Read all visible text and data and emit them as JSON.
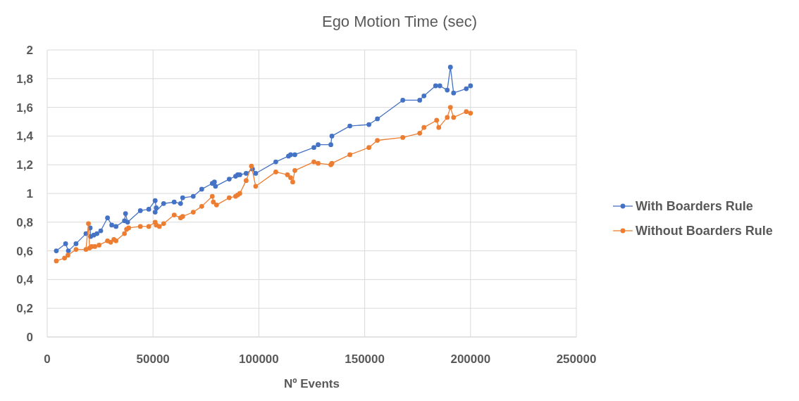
{
  "chart_data": {
    "type": "line",
    "title": "Ego Motion Time (sec)",
    "xlabel": "Nº Events",
    "xlim": [
      0,
      250000
    ],
    "xticks": [
      0,
      50000,
      100000,
      150000,
      200000,
      250000
    ],
    "ylim": [
      0,
      2
    ],
    "yticks": [
      {
        "value": 0,
        "label": "0"
      },
      {
        "value": 0.2,
        "label": "0,2"
      },
      {
        "value": 0.4,
        "label": "0,4"
      },
      {
        "value": 0.6,
        "label": "0,6"
      },
      {
        "value": 0.8,
        "label": "0,8"
      },
      {
        "value": 1,
        "label": "1"
      },
      {
        "value": 1.2,
        "label": "1,2"
      },
      {
        "value": 1.4,
        "label": "1,4"
      },
      {
        "value": 1.6,
        "label": "1,6"
      },
      {
        "value": 1.8,
        "label": "1,8"
      },
      {
        "value": 2,
        "label": "2"
      }
    ],
    "grid": true,
    "legend": "right",
    "marker": "circle",
    "series": [
      {
        "name": "With Boarders Rule",
        "color": "#4472c4",
        "x": [
          4300,
          8700,
          10000,
          13600,
          18300,
          20300,
          20500,
          22000,
          23500,
          25300,
          28500,
          30500,
          32500,
          36500,
          37000,
          38000,
          44000,
          48000,
          51000,
          51500,
          51000,
          55000,
          60000,
          63000,
          64000,
          69000,
          73000,
          78000,
          79000,
          79500,
          86000,
          89000,
          90000,
          91000,
          94000,
          97000,
          98500,
          108000,
          114000,
          115000,
          117000,
          126000,
          128000,
          134000,
          134500,
          143000,
          152000,
          156000,
          168000,
          176000,
          178000,
          183500,
          185500,
          189000,
          190500,
          192000,
          198000,
          200000
        ],
        "values": [
          0.6,
          0.65,
          0.6,
          0.65,
          0.72,
          0.76,
          0.7,
          0.71,
          0.72,
          0.74,
          0.83,
          0.78,
          0.77,
          0.81,
          0.86,
          0.8,
          0.88,
          0.89,
          0.95,
          0.9,
          0.87,
          0.93,
          0.94,
          0.93,
          0.97,
          0.98,
          1.03,
          1.07,
          1.08,
          1.05,
          1.1,
          1.12,
          1.13,
          1.13,
          1.14,
          1.17,
          1.14,
          1.22,
          1.26,
          1.27,
          1.27,
          1.32,
          1.34,
          1.34,
          1.4,
          1.47,
          1.48,
          1.52,
          1.65,
          1.65,
          1.68,
          1.75,
          1.75,
          1.72,
          1.88,
          1.7,
          1.73,
          1.75
        ]
      },
      {
        "name": "Without Boarders Rule",
        "color": "#ed7d31",
        "x": [
          4300,
          8200,
          9800,
          13600,
          18300,
          19500,
          20000,
          21000,
          22500,
          24500,
          28500,
          30000,
          31500,
          32500,
          36500,
          37500,
          38500,
          44000,
          48000,
          51000,
          51500,
          53000,
          55000,
          60000,
          63000,
          64000,
          69000,
          73000,
          78000,
          78500,
          80000,
          86000,
          89000,
          90000,
          91000,
          94000,
          96500,
          98500,
          108000,
          113500,
          115000,
          116000,
          117000,
          126000,
          128000,
          134000,
          134500,
          143000,
          152000,
          156000,
          168000,
          176000,
          178000,
          184000,
          185000,
          189000,
          190500,
          192000,
          198000,
          200000
        ],
        "values": [
          0.53,
          0.55,
          0.57,
          0.61,
          0.61,
          0.79,
          0.62,
          0.63,
          0.63,
          0.64,
          0.67,
          0.66,
          0.68,
          0.67,
          0.72,
          0.75,
          0.76,
          0.77,
          0.77,
          0.8,
          0.78,
          0.77,
          0.79,
          0.85,
          0.83,
          0.84,
          0.87,
          0.91,
          0.98,
          0.94,
          0.92,
          0.97,
          0.98,
          0.99,
          1.0,
          1.09,
          1.19,
          1.05,
          1.15,
          1.13,
          1.11,
          1.08,
          1.16,
          1.22,
          1.21,
          1.2,
          1.21,
          1.27,
          1.32,
          1.37,
          1.39,
          1.42,
          1.46,
          1.51,
          1.46,
          1.53,
          1.6,
          1.53,
          1.57,
          1.56
        ]
      }
    ]
  }
}
